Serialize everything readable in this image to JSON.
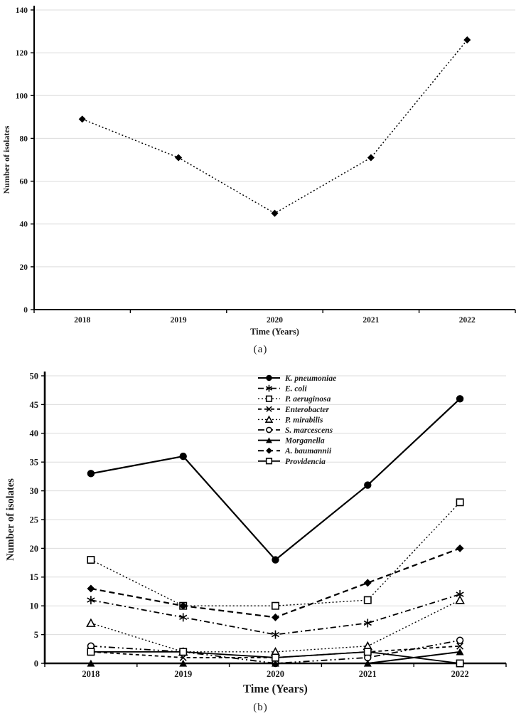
{
  "figure": {
    "captions": {
      "a": "(a)",
      "b": "(b)"
    }
  },
  "colors": {
    "series": "#000000",
    "axis": "#000000",
    "grid": "#dcdcdc",
    "background": "#ffffff"
  },
  "chart_data": [
    {
      "type": "line",
      "panel": "a",
      "title": "",
      "xlabel": "Time (Years)",
      "ylabel": "Number of isolates",
      "categories": [
        "2018",
        "2019",
        "2020",
        "2021",
        "2022"
      ],
      "ylim": [
        0,
        140
      ],
      "ytick_step": 20,
      "grid": true,
      "legend_position": "none",
      "series": [
        {
          "name": "",
          "values": [
            89,
            71,
            45,
            71,
            126
          ],
          "marker": "filled-diamond",
          "line": "dotted",
          "lw": 1.5
        }
      ]
    },
    {
      "type": "line",
      "panel": "b",
      "title": "",
      "xlabel": "Time (Years)",
      "ylabel": "Number of isolates",
      "categories": [
        "2018",
        "2019",
        "2020",
        "2021",
        "2022"
      ],
      "ylim": [
        0,
        50
      ],
      "ytick_step": 5,
      "grid": true,
      "legend_position": "top-center",
      "series": [
        {
          "name": "K. pneumoniae",
          "values": [
            33,
            36,
            18,
            31,
            46
          ],
          "marker": "filled-circle",
          "line": "solid",
          "lw": 2.2
        },
        {
          "name": "E. coli",
          "values": [
            11,
            8,
            5,
            7,
            12
          ],
          "marker": "asterisk",
          "line": "dash-dot",
          "lw": 1.8
        },
        {
          "name": "P. aeruginosa",
          "values": [
            18,
            10,
            10,
            11,
            28
          ],
          "marker": "open-square",
          "line": "dotted",
          "lw": 1.4
        },
        {
          "name": "Enterobacter",
          "values": [
            2,
            1,
            1,
            2,
            3
          ],
          "marker": "x-cross",
          "line": "dashed",
          "lw": 1.8
        },
        {
          "name": "P. mirabilis",
          "values": [
            7,
            2,
            2,
            3,
            11
          ],
          "marker": "open-triangle",
          "line": "dotted",
          "lw": 1.4
        },
        {
          "name": "S. marcescens",
          "values": [
            3,
            2,
            0,
            1,
            4
          ],
          "marker": "open-circle",
          "line": "dash-dot-dot",
          "lw": 1.8
        },
        {
          "name": "Morganella",
          "values": [
            0,
            0,
            0,
            0,
            2
          ],
          "marker": "filled-triangle",
          "line": "solid",
          "lw": 2.0
        },
        {
          "name": "A. baumannii",
          "values": [
            13,
            10,
            8,
            14,
            20
          ],
          "marker": "filled-diamond",
          "line": "long-dash",
          "lw": 2.2
        },
        {
          "name": "Providencia",
          "values": [
            2,
            2,
            1,
            2,
            0
          ],
          "marker": "open-square",
          "line": "solid",
          "lw": 1.8
        }
      ]
    }
  ]
}
